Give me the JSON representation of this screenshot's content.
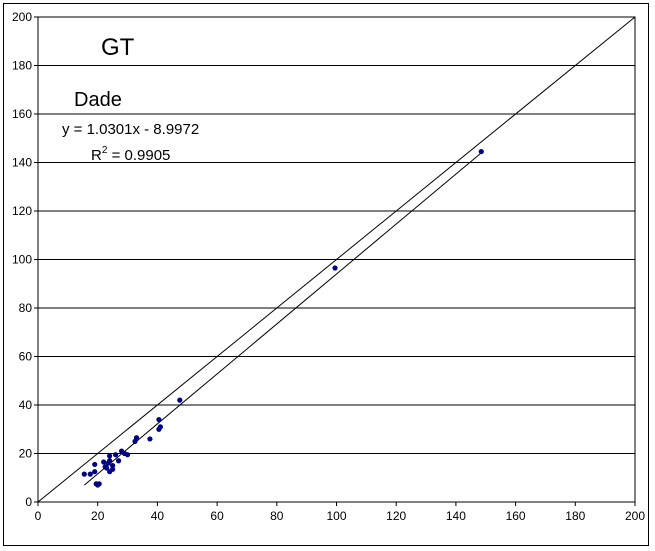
{
  "chart_data": {
    "type": "scatter",
    "title": "GT",
    "subtitle": "Dade",
    "xlim": [
      0,
      200
    ],
    "ylim": [
      0,
      200
    ],
    "xticks": [
      0,
      20,
      40,
      60,
      80,
      100,
      120,
      140,
      160,
      180,
      200
    ],
    "yticks": [
      0,
      20,
      40,
      60,
      80,
      100,
      120,
      140,
      160,
      180,
      200
    ],
    "grid": "horizontal",
    "series": [
      {
        "color": "#000080",
        "points": [
          [
            15.5,
            11.5
          ],
          [
            17.5,
            11.5
          ],
          [
            19,
            12.5
          ],
          [
            19,
            15.5
          ],
          [
            19.5,
            7.5
          ],
          [
            20,
            7
          ],
          [
            20.5,
            7.5
          ],
          [
            22,
            16.5
          ],
          [
            22.5,
            14.5
          ],
          [
            23,
            14
          ],
          [
            23.5,
            16
          ],
          [
            24,
            19
          ],
          [
            24,
            17
          ],
          [
            24,
            12.5
          ],
          [
            25,
            13.5
          ],
          [
            25,
            15
          ],
          [
            26,
            19.5
          ],
          [
            27,
            17
          ],
          [
            28,
            21
          ],
          [
            29,
            20
          ],
          [
            30,
            19.5
          ],
          [
            32.5,
            25
          ],
          [
            33,
            26.5
          ],
          [
            37.5,
            26
          ],
          [
            40.5,
            30
          ],
          [
            40.5,
            34
          ],
          [
            41,
            31
          ],
          [
            47.5,
            42
          ],
          [
            99.5,
            96.5
          ],
          [
            148.5,
            144.5
          ]
        ]
      }
    ],
    "reference_line": {
      "x": [
        0,
        200
      ],
      "y": [
        0,
        200
      ],
      "color": "#000000"
    },
    "trendline": {
      "slope": 1.0301,
      "intercept": -8.9972,
      "x_range": [
        15.5,
        148.5
      ],
      "color": "#000000"
    },
    "annotations": {
      "equation": "y = 1.0301x - 8.9972",
      "r2_label": "R",
      "r2_sup": "2",
      "r2_value": " = 0.9905"
    }
  }
}
